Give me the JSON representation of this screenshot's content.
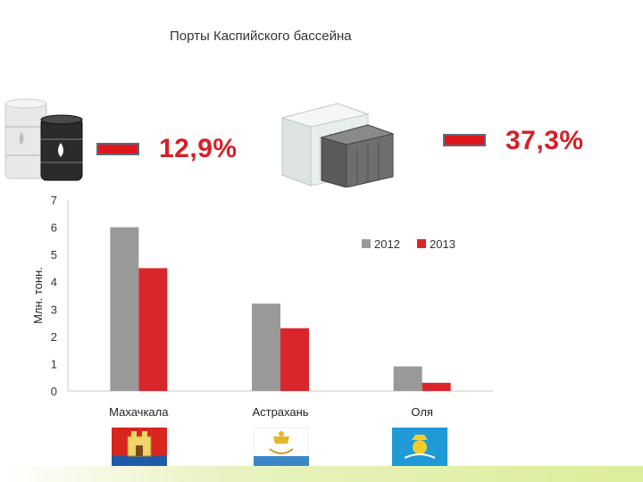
{
  "slide": {
    "title": "Порты Каспийского бассейна"
  },
  "indicators": {
    "oil_change": "12,9%",
    "container_change": "37,3%"
  },
  "colors": {
    "series_2012": "#999999",
    "series_2013": "#d9262b",
    "accent_red": "#d61f26"
  },
  "icons": {
    "oil": "oil-barrels-icon",
    "cargo": "cargo-containers-icon",
    "makhachkala": "makhachkala-emblem-icon",
    "astrakhan": "astrakhan-emblem-icon",
    "olya": "olya-emblem-icon"
  },
  "chart_data": {
    "type": "bar",
    "categories": [
      "Махачкала",
      "Астрахань",
      "Оля"
    ],
    "series": [
      {
        "name": "2012",
        "values": [
          6.0,
          3.2,
          0.9
        ]
      },
      {
        "name": "2013",
        "values": [
          4.5,
          2.3,
          0.3
        ]
      }
    ],
    "ylabel": "Млн. тонн.",
    "ylim": [
      0,
      7
    ],
    "yticks": [
      "0",
      "1",
      "2",
      "3",
      "4",
      "5",
      "6",
      "7"
    ],
    "legend": "top-right",
    "grid": false
  }
}
